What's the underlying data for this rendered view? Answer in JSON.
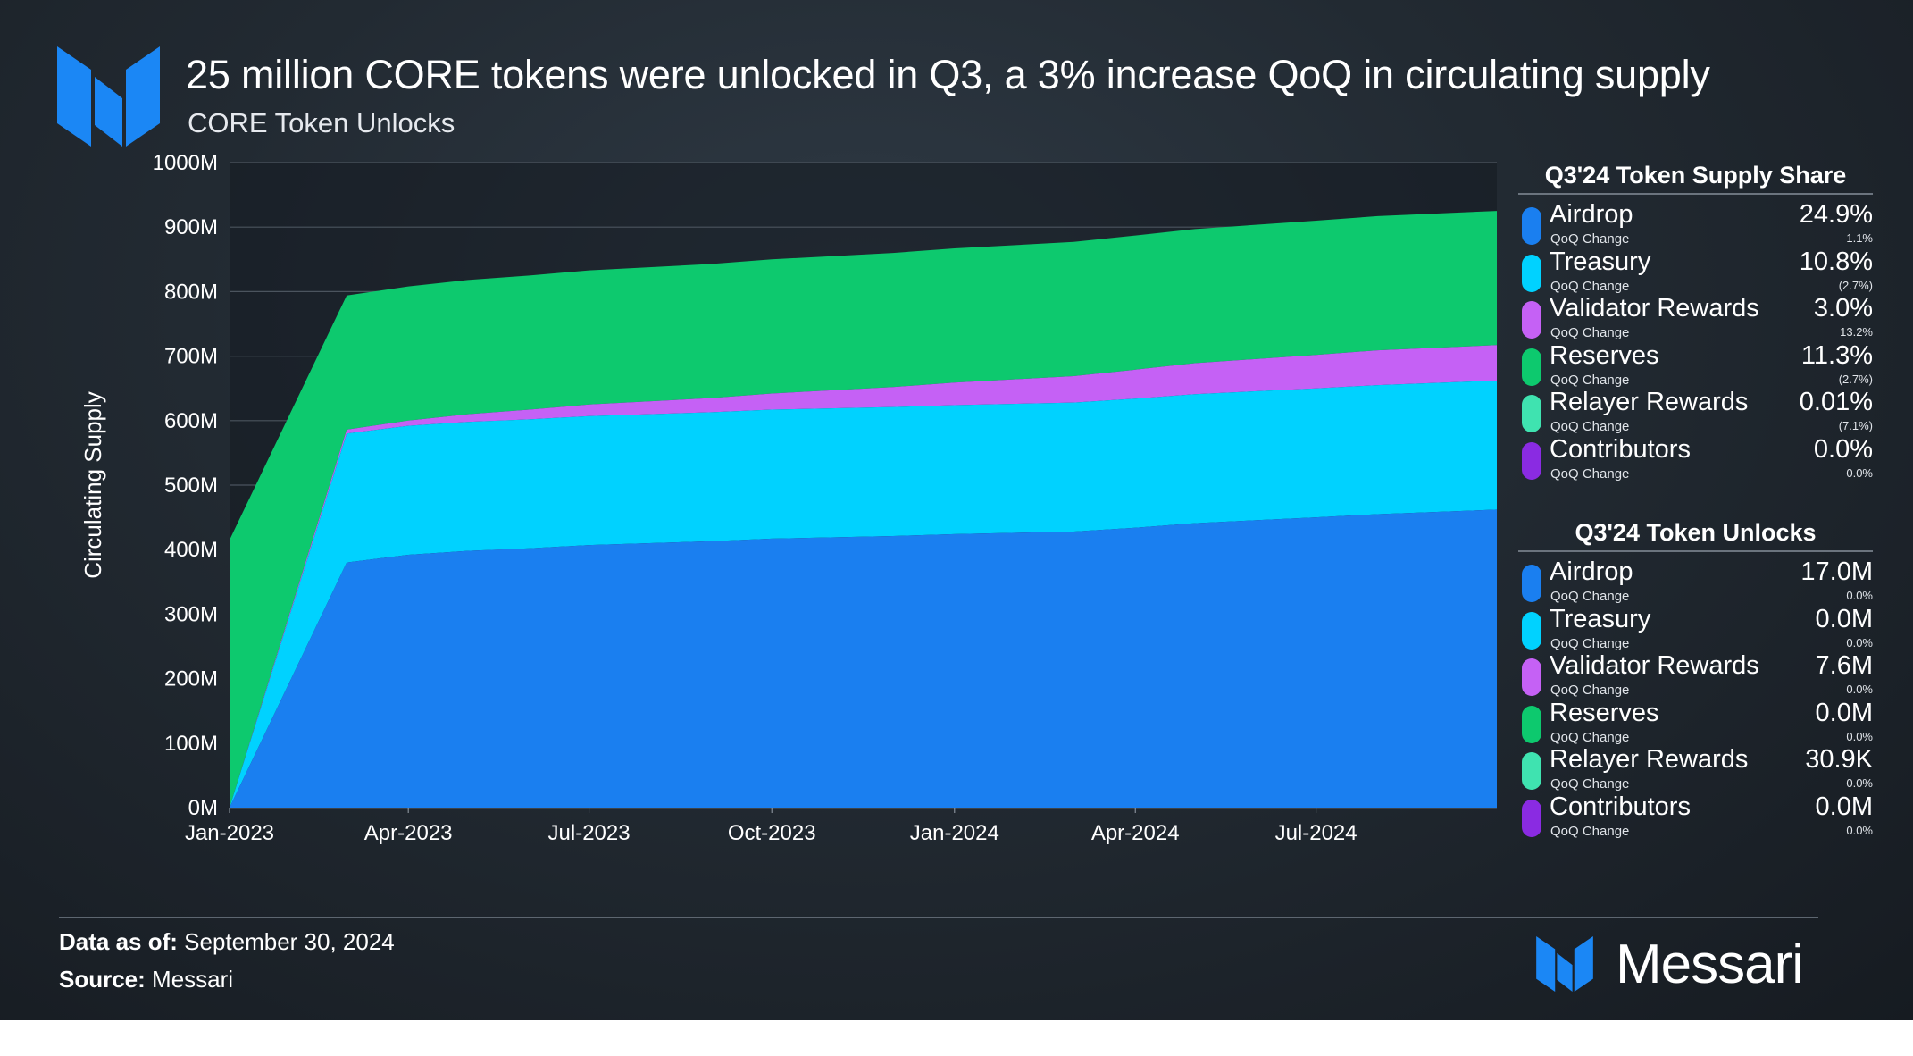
{
  "header": {
    "title": "25 million CORE tokens were unlocked in Q3, a 3% increase QoQ in circulating supply",
    "subtitle": "CORE Token Unlocks"
  },
  "colors": {
    "airdrop": "#1a7ff0",
    "treasury": "#00d2ff",
    "validator_rewards": "#c561f5",
    "reserves": "#0dc96e",
    "relayer_rewards": "#3fe3b0",
    "contributors": "#8a2be2",
    "brand_blue": "#1b87f5"
  },
  "chart_data": {
    "type": "area",
    "stacked": true,
    "x": [
      "Jan-2023",
      "Mar-2023",
      "Apr-2023",
      "May-2023",
      "Jun-2023",
      "Jul-2023",
      "Sep-2023",
      "Oct-2023",
      "Dec-2023",
      "Jan-2024",
      "Mar-2024",
      "Apr-2024",
      "May-2024",
      "Jul-2024",
      "Aug-2024",
      "Sep-2024"
    ],
    "series": [
      {
        "name": "Airdrop",
        "color": "#1a7ff0",
        "values": [
          0,
          380,
          392,
          398,
          402,
          407,
          413,
          417,
          421,
          424,
          428,
          434,
          441,
          450,
          455,
          462
        ]
      },
      {
        "name": "Treasury",
        "color": "#00d2ff",
        "values": [
          0,
          200,
          200,
          200,
          200,
          200,
          200,
          200,
          200,
          200,
          200,
          200,
          200,
          200,
          200,
          200
        ]
      },
      {
        "name": "Validator Rewards",
        "color": "#c561f5",
        "values": [
          0,
          6,
          8,
          12,
          15,
          18,
          22,
          25,
          31,
          35,
          41,
          45,
          48,
          52,
          54,
          55
        ]
      },
      {
        "name": "Reserves",
        "color": "#0dc96e",
        "values": [
          415,
          208,
          208,
          208,
          208,
          208,
          208,
          208,
          208,
          208,
          208,
          208,
          208,
          208,
          208,
          208
        ]
      },
      {
        "name": "Relayer Rewards",
        "color": "#3fe3b0",
        "values": [
          0,
          0,
          0,
          0,
          0,
          0,
          0,
          0,
          0,
          0,
          0,
          0,
          0,
          0,
          0,
          0
        ]
      },
      {
        "name": "Contributors",
        "color": "#8a2be2",
        "values": [
          0,
          0,
          0,
          0,
          0,
          0,
          0,
          0,
          0,
          0,
          0,
          0,
          0,
          0,
          0,
          0
        ]
      }
    ],
    "ylabel": "Circulating Supply",
    "ylim": [
      0,
      1000
    ],
    "y_ticks": [
      "0M",
      "100M",
      "200M",
      "300M",
      "400M",
      "500M",
      "600M",
      "700M",
      "800M",
      "900M",
      "1000M"
    ],
    "x_ticks": [
      "Jan-2023",
      "Apr-2023",
      "Jul-2023",
      "Oct-2023",
      "Jan-2024",
      "Apr-2024",
      "Jul-2024"
    ],
    "grid": true,
    "legend": "right"
  },
  "legend_share": {
    "title": "Q3'24 Token Supply Share",
    "items": [
      {
        "name": "Airdrop",
        "sub": "QoQ Change",
        "value": "24.9%",
        "change": "1.1%",
        "color": "#1a7ff0"
      },
      {
        "name": "Treasury",
        "sub": "QoQ Change",
        "value": "10.8%",
        "change": "(2.7%)",
        "color": "#00d2ff"
      },
      {
        "name": "Validator Rewards",
        "sub": "QoQ Change",
        "value": "3.0%",
        "change": "13.2%",
        "color": "#c561f5"
      },
      {
        "name": "Reserves",
        "sub": "QoQ Change",
        "value": "11.3%",
        "change": "(2.7%)",
        "color": "#0dc96e"
      },
      {
        "name": "Relayer Rewards",
        "sub": "QoQ Change",
        "value": "0.01%",
        "change": "(7.1%)",
        "color": "#3fe3b0"
      },
      {
        "name": "Contributors",
        "sub": "QoQ Change",
        "value": "0.0%",
        "change": "0.0%",
        "color": "#8a2be2"
      }
    ]
  },
  "legend_unlocks": {
    "title": "Q3'24 Token Unlocks",
    "items": [
      {
        "name": "Airdrop",
        "sub": "QoQ Change",
        "value": "17.0M",
        "change": "0.0%",
        "color": "#1a7ff0"
      },
      {
        "name": "Treasury",
        "sub": "QoQ Change",
        "value": "0.0M",
        "change": "0.0%",
        "color": "#00d2ff"
      },
      {
        "name": "Validator Rewards",
        "sub": "QoQ Change",
        "value": "7.6M",
        "change": "0.0%",
        "color": "#c561f5"
      },
      {
        "name": "Reserves",
        "sub": "QoQ Change",
        "value": "0.0M",
        "change": "0.0%",
        "color": "#0dc96e"
      },
      {
        "name": "Relayer Rewards",
        "sub": "QoQ Change",
        "value": "30.9K",
        "change": "0.0%",
        "color": "#3fe3b0"
      },
      {
        "name": "Contributors",
        "sub": "QoQ Change",
        "value": "0.0M",
        "change": "0.0%",
        "color": "#8a2be2"
      }
    ]
  },
  "footer": {
    "data_label": "Data as of:",
    "data_value": "September 30, 2024",
    "source_label": "Source:",
    "source_value": "Messari",
    "brand": "Messari"
  }
}
